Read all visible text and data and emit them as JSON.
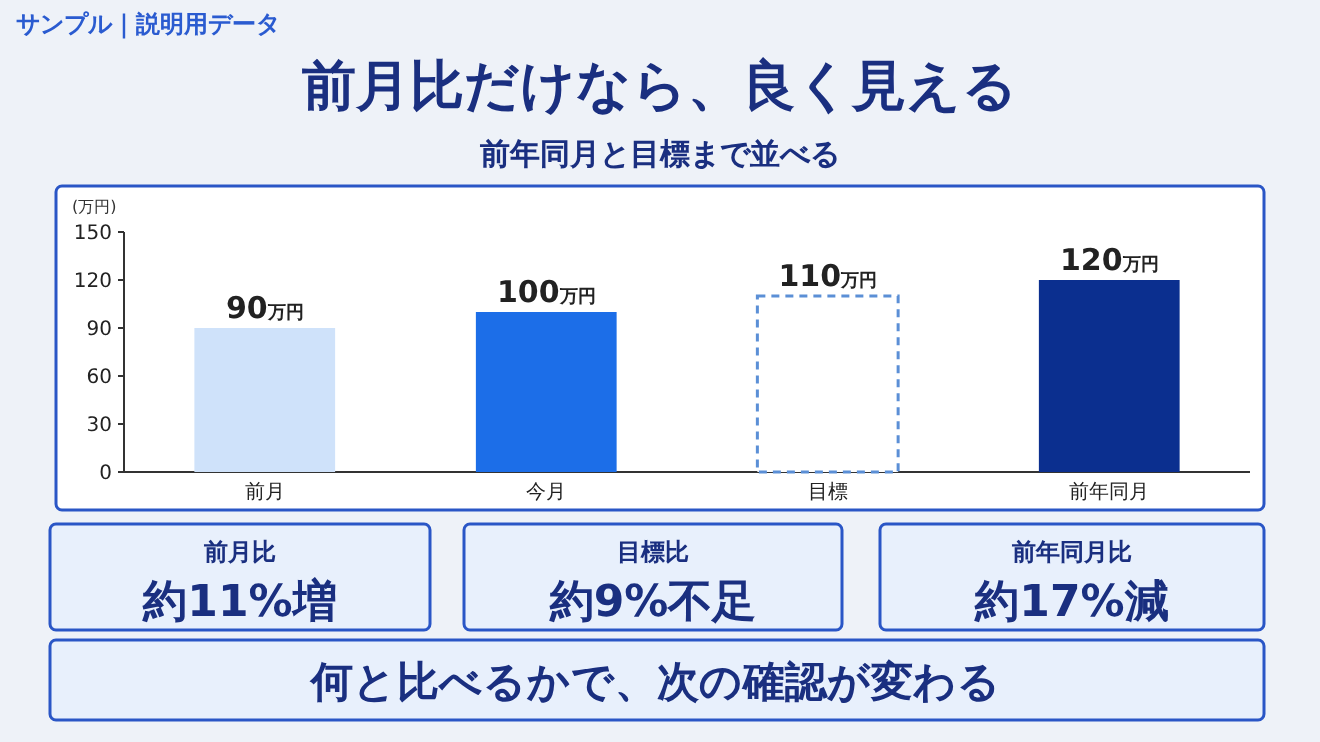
{
  "chart_data": [
    {
      "type": "bar",
      "title": "前月比だけなら、良く見える",
      "subtitle": "前年同月と目標まで並べる",
      "annotations": [
        "サンプル｜説明用データ"
      ],
      "ylabel": "(万円)",
      "categories": [
        "前月",
        "今月",
        "目標",
        "前年同月"
      ],
      "values": [
        90,
        100,
        110,
        120
      ],
      "colors": [
        "#cfe2fa",
        "#1c6ee8",
        "#ffffff",
        "#0b2f8f"
      ],
      "value_labels": [
        "90万円",
        "100万円",
        "110万円",
        "120万円"
      ],
      "ylim": [
        0,
        150
      ],
      "yticks": [
        0,
        30,
        60,
        90,
        120,
        150
      ],
      "grid": false
    },
    {
      "type": "other",
      "annotations": [
        "前月比",
        "約11%増",
        "目標比",
        "約9%不足",
        "前年同月比",
        "約17%減",
        "何と比べるかで、次の確認が変わる"
      ]
    }
  ]
}
